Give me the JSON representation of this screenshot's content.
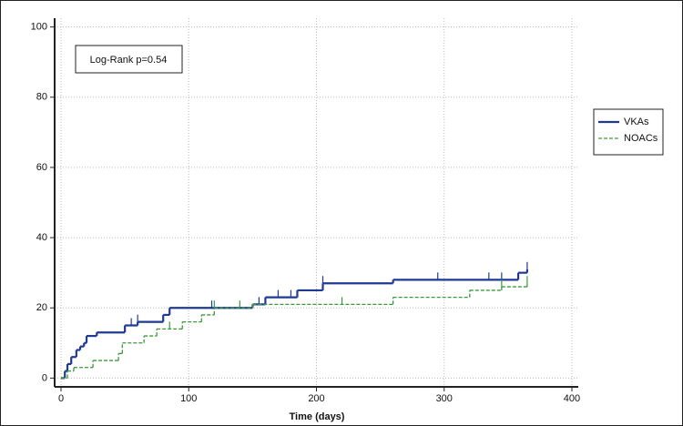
{
  "chart_data": {
    "type": "step",
    "xlabel": "Time (days)",
    "annotation": "Log-Rank p=0.54",
    "xlim": [
      -5,
      405
    ],
    "ylim": [
      -2.5,
      102.5
    ],
    "xticks": [
      0,
      100,
      200,
      300,
      400
    ],
    "yticks": [
      0,
      20,
      40,
      60,
      80,
      100
    ],
    "grid": true,
    "legend": "right",
    "series": [
      {
        "name": "VKAs",
        "color": "#1f3a93",
        "dash": false,
        "x": [
          0,
          3,
          5,
          8,
          12,
          15,
          18,
          20,
          28,
          50,
          60,
          80,
          85,
          150,
          160,
          185,
          205,
          260,
          358,
          365
        ],
        "values": [
          0,
          2,
          4,
          6,
          8,
          9,
          10,
          12,
          13,
          15,
          16,
          18,
          20,
          21,
          23,
          25,
          27,
          28,
          30,
          31
        ],
        "censored": [
          55,
          60,
          118,
          155,
          170,
          180,
          205,
          295,
          335,
          345,
          365
        ]
      },
      {
        "name": "NOACs",
        "color": "#3a9a3a",
        "dash": true,
        "x": [
          0,
          5,
          10,
          25,
          45,
          48,
          65,
          75,
          95,
          110,
          120,
          150,
          260,
          320,
          345,
          365
        ],
        "values": [
          0,
          2,
          3,
          5,
          7,
          10,
          12,
          14,
          16,
          18,
          20,
          21,
          23,
          25,
          26,
          27
        ],
        "censored": [
          85,
          120,
          140,
          220,
          345,
          365
        ]
      }
    ]
  }
}
